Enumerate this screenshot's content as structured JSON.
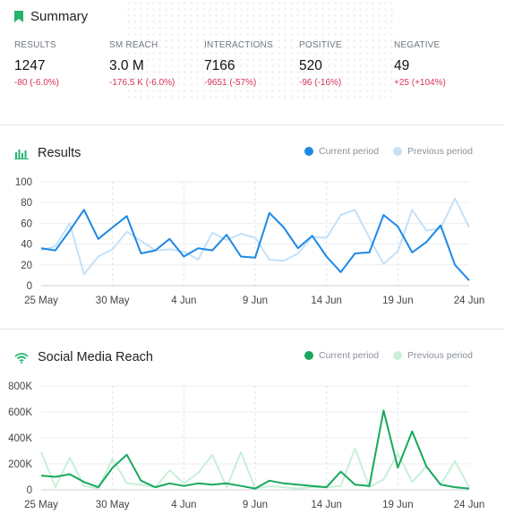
{
  "summary": {
    "title": "Summary",
    "metrics": [
      {
        "label": "RESULTS",
        "value": "1247",
        "change": "-80  (-6.0%)"
      },
      {
        "label": "SM REACH",
        "value": "3.0 M",
        "change": "-176.5 K  (-6.0%)"
      },
      {
        "label": "INTERACTIONS",
        "value": "7166",
        "change": "-9651  (-57%)"
      },
      {
        "label": "POSITIVE",
        "value": "520",
        "change": "-96  (-16%)"
      },
      {
        "label": "NEGATIVE",
        "value": "49",
        "change": "+25  (+104%)"
      }
    ]
  },
  "colors": {
    "accent_green": "#21b56b",
    "negative_red": "#d6335b",
    "results_current": "#1e88e5",
    "results_previous": "#c4e1f8",
    "reach_current": "#18a85c",
    "reach_previous": "#c9efd9"
  },
  "results_panel": {
    "title": "Results",
    "icon": "bar-chart-icon",
    "legend_current": "Current period",
    "legend_previous": "Previous period"
  },
  "reach_panel": {
    "title": "Social Media Reach",
    "icon": "wifi-icon",
    "legend_current": "Current period",
    "legend_previous": "Previous period"
  },
  "chart_data": [
    {
      "type": "line",
      "title": "Results",
      "x": [
        "25 May",
        "26 May",
        "27 May",
        "28 May",
        "29 May",
        "30 May",
        "31 May",
        "1 Jun",
        "2 Jun",
        "3 Jun",
        "4 Jun",
        "5 Jun",
        "6 Jun",
        "7 Jun",
        "8 Jun",
        "9 Jun",
        "10 Jun",
        "11 Jun",
        "12 Jun",
        "13 Jun",
        "14 Jun",
        "15 Jun",
        "16 Jun",
        "17 Jun",
        "18 Jun",
        "19 Jun",
        "20 Jun",
        "21 Jun",
        "22 Jun",
        "23 Jun",
        "24 Jun"
      ],
      "x_tick_labels": [
        "25 May",
        "30 May",
        "4 Jun",
        "9 Jun",
        "14 Jun",
        "19 Jun",
        "24 Jun"
      ],
      "y_tick_labels": [
        "0",
        "20",
        "40",
        "60",
        "80",
        "100"
      ],
      "ylim": [
        0,
        100
      ],
      "series": [
        {
          "name": "Current period",
          "values": [
            36,
            34,
            53,
            73,
            45,
            56,
            67,
            31,
            34,
            45,
            28,
            36,
            34,
            49,
            28,
            27,
            70,
            56,
            36,
            48,
            28,
            13,
            31,
            32,
            68,
            57,
            32,
            42,
            58,
            20,
            5
          ]
        },
        {
          "name": "Previous period",
          "values": [
            34,
            38,
            60,
            11,
            28,
            35,
            52,
            43,
            34,
            35,
            33,
            25,
            51,
            44,
            50,
            46,
            25,
            24,
            31,
            47,
            46,
            68,
            73,
            46,
            21,
            33,
            73,
            53,
            55,
            84,
            56
          ]
        }
      ]
    },
    {
      "type": "line",
      "title": "Social Media Reach",
      "x": [
        "25 May",
        "26 May",
        "27 May",
        "28 May",
        "29 May",
        "30 May",
        "31 May",
        "1 Jun",
        "2 Jun",
        "3 Jun",
        "4 Jun",
        "5 Jun",
        "6 Jun",
        "7 Jun",
        "8 Jun",
        "9 Jun",
        "10 Jun",
        "11 Jun",
        "12 Jun",
        "13 Jun",
        "14 Jun",
        "15 Jun",
        "16 Jun",
        "17 Jun",
        "18 Jun",
        "19 Jun",
        "20 Jun",
        "21 Jun",
        "22 Jun",
        "23 Jun",
        "24 Jun"
      ],
      "x_tick_labels": [
        "25 May",
        "30 May",
        "4 Jun",
        "9 Jun",
        "14 Jun",
        "19 Jun",
        "24 Jun"
      ],
      "y_tick_labels": [
        "0",
        "200K",
        "400K",
        "600K",
        "800K"
      ],
      "ylim": [
        0,
        800000
      ],
      "series": [
        {
          "name": "Current period",
          "values": [
            110000,
            100000,
            120000,
            60000,
            20000,
            170000,
            270000,
            70000,
            20000,
            50000,
            30000,
            50000,
            40000,
            50000,
            30000,
            10000,
            70000,
            50000,
            40000,
            30000,
            20000,
            140000,
            40000,
            30000,
            610000,
            170000,
            450000,
            180000,
            40000,
            20000,
            10000
          ]
        },
        {
          "name": "Previous period",
          "values": [
            290000,
            20000,
            250000,
            30000,
            10000,
            240000,
            50000,
            40000,
            20000,
            150000,
            50000,
            130000,
            270000,
            20000,
            290000,
            10000,
            30000,
            20000,
            10000,
            20000,
            20000,
            30000,
            320000,
            20000,
            80000,
            280000,
            60000,
            180000,
            40000,
            220000,
            20000
          ]
        }
      ]
    }
  ]
}
